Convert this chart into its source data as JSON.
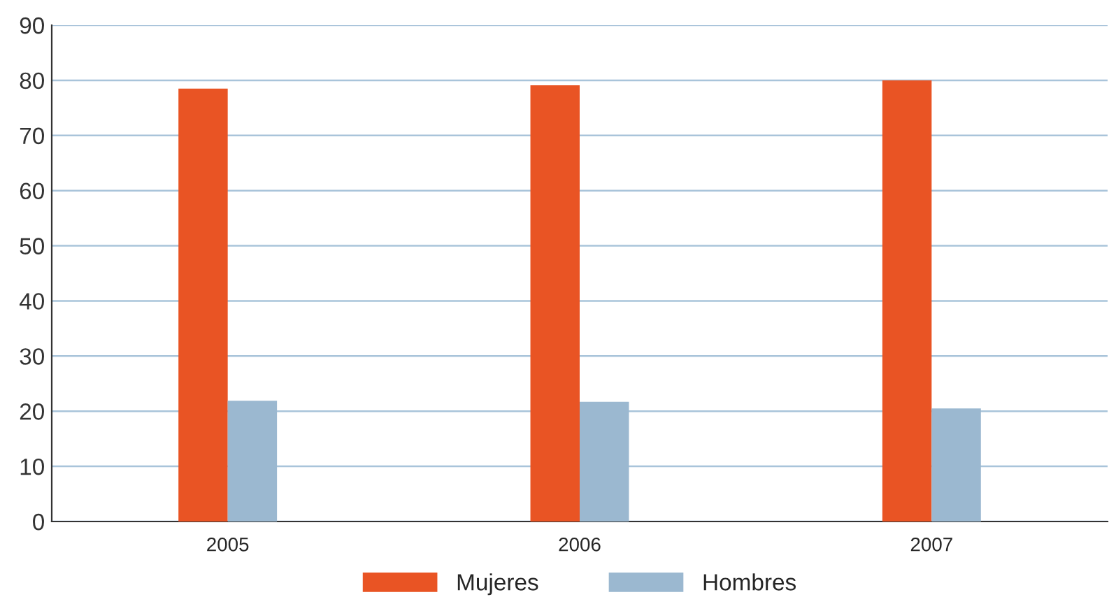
{
  "chart_data": {
    "type": "bar",
    "categories": [
      "2005",
      "2006",
      "2007"
    ],
    "series": [
      {
        "name": "Mujeres",
        "color": "#e95424",
        "values": [
          78.5,
          79.1,
          80
        ]
      },
      {
        "name": "Hombres",
        "color": "#9bb8d0",
        "values": [
          21.9,
          21.7,
          20.5
        ]
      }
    ],
    "ylim": [
      0,
      90
    ],
    "yticks": [
      0,
      10,
      20,
      30,
      40,
      50,
      60,
      70,
      80,
      90
    ],
    "grid": "y",
    "legend": "bottom"
  }
}
